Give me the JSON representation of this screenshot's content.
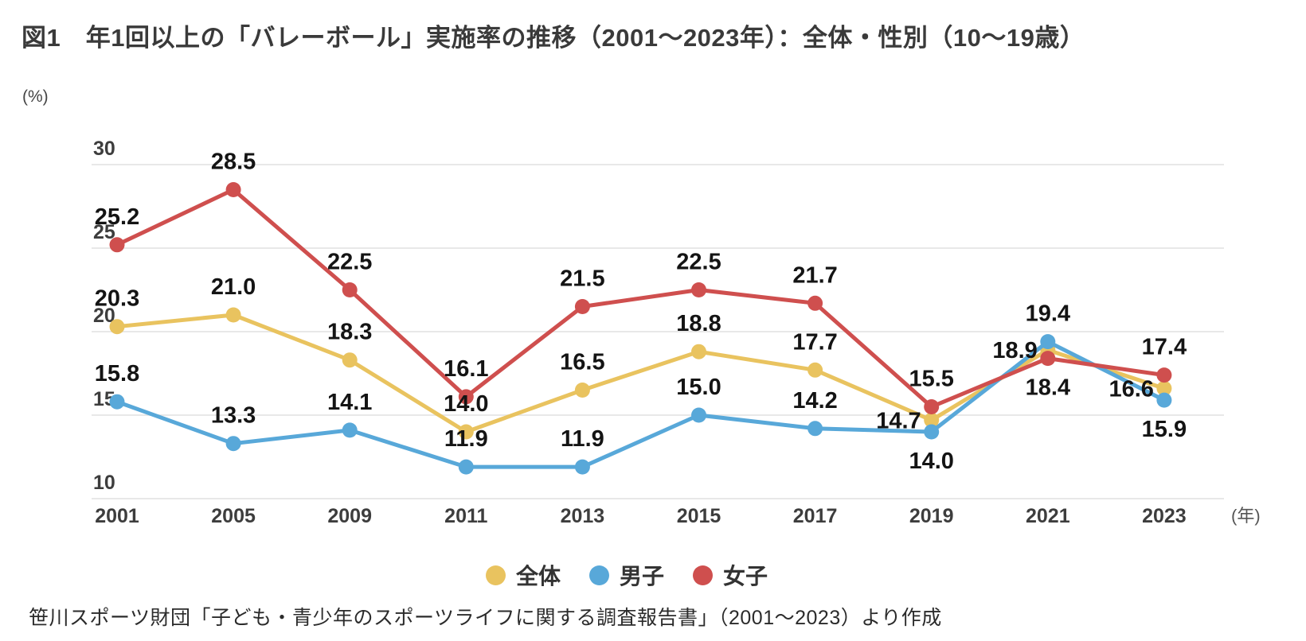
{
  "title": "図1　年1回以上の「バレーボール」実施率の推移（2001～2023年）：全体・性別（10～19歳）",
  "y_unit_label": "(%)",
  "x_unit_label": "(年)",
  "source": "笹川スポーツ財団「子ども・青少年のスポーツライフに関する調査報告書」（2001～2023）より作成",
  "colors": {
    "grid": "#e8e8e8",
    "axis_text": "#3d3d3d",
    "data_label_text": "#141414",
    "unit_text": "#555555",
    "zentai": "#e9c35f",
    "danshi": "#58a8d9",
    "joshi": "#cf4f4e"
  },
  "chart_data": {
    "type": "line",
    "categories": [
      "2001",
      "2005",
      "2009",
      "2011",
      "2013",
      "2015",
      "2017",
      "2019",
      "2021",
      "2023"
    ],
    "series": [
      {
        "name": "全体",
        "color": "#e9c35f",
        "values": [
          20.3,
          21.0,
          18.3,
          14.0,
          16.5,
          18.8,
          17.7,
          14.7,
          18.9,
          16.6
        ],
        "label_pos": [
          "above",
          "above",
          "above",
          "above",
          "above",
          "above",
          "above",
          "left",
          "left",
          "left"
        ]
      },
      {
        "name": "男子",
        "color": "#58a8d9",
        "values": [
          15.8,
          13.3,
          14.1,
          11.9,
          11.9,
          15.0,
          14.2,
          14.0,
          19.4,
          15.9
        ],
        "label_pos": [
          "above",
          "above",
          "above",
          "above",
          "above",
          "above",
          "above",
          "below",
          "above",
          "below"
        ]
      },
      {
        "name": "女子",
        "color": "#cf4f4e",
        "values": [
          25.2,
          28.5,
          22.5,
          16.1,
          21.5,
          22.5,
          21.7,
          15.5,
          18.4,
          17.4
        ],
        "label_pos": [
          "above",
          "above",
          "above",
          "above",
          "above",
          "above",
          "above",
          "above",
          "below",
          "above"
        ]
      }
    ],
    "title": "年1回以上の「バレーボール」実施率の推移（2001～2023年）：全体・性別（10～19歳）",
    "xlabel": "年",
    "ylabel": "%",
    "ylim": [
      10,
      30
    ],
    "yticks": [
      10,
      15,
      20,
      25,
      30
    ],
    "grid": true,
    "legend_position": "bottom",
    "data_labels": true
  }
}
